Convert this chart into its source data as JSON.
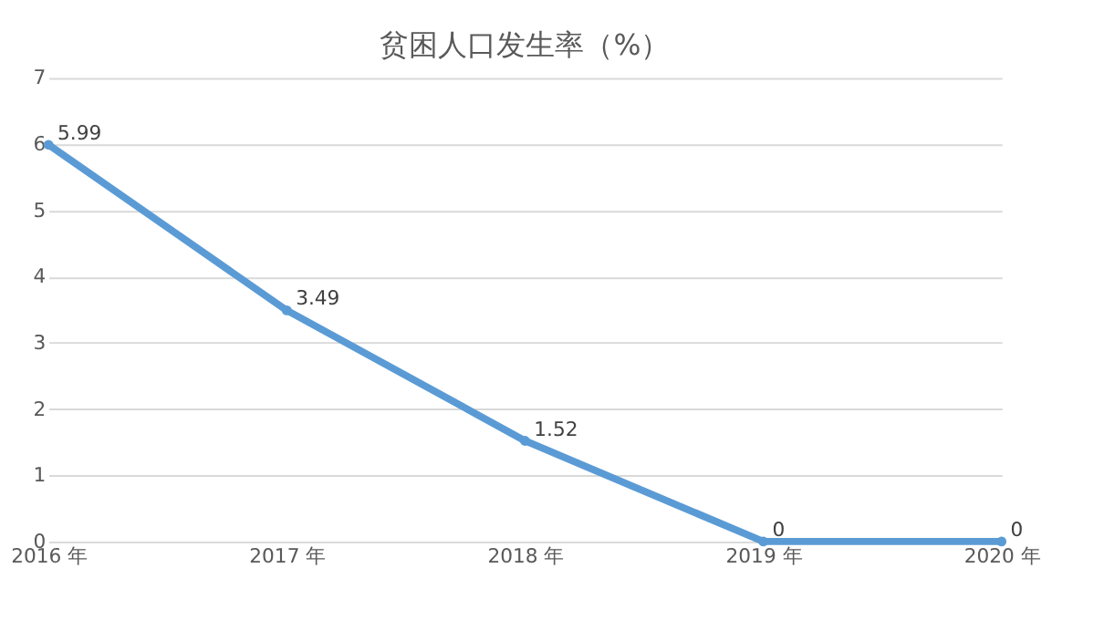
{
  "chart_data": {
    "type": "line",
    "title": "贫困人口发生率（%）",
    "categories": [
      "2016 年",
      "2017 年",
      "2018 年",
      "2019 年",
      "2020 年"
    ],
    "series": [
      {
        "color": "#5b9bd5",
        "values": [
          5.99,
          3.49,
          1.52,
          0,
          0
        ]
      }
    ],
    "ylim": [
      0,
      7
    ],
    "yticks": [
      0,
      1,
      2,
      3,
      4,
      5,
      6,
      7
    ],
    "grid": "y",
    "marker": "circle",
    "line_style": "solid",
    "data_labels": true
  }
}
